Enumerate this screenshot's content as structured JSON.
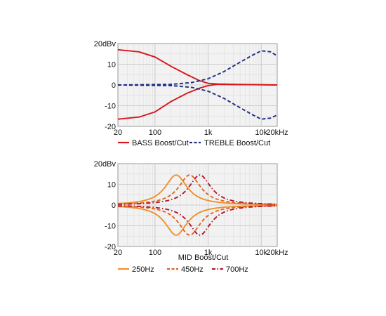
{
  "chart_data": [
    {
      "type": "line",
      "title": "",
      "xscale": "log",
      "xlim": [
        20,
        20000
      ],
      "ylim": [
        -20,
        20
      ],
      "y_unit_label": "20dBv",
      "y_ticks": [
        -20,
        -10,
        0,
        10,
        20
      ],
      "y_tick_labels": [
        "-20",
        "-10",
        "0",
        "10",
        "20dBv"
      ],
      "x_ticks": [
        20,
        100,
        1000,
        10000,
        20000
      ],
      "x_tick_labels": [
        "20",
        "100",
        "1k",
        "10k",
        "20kHz"
      ],
      "grid": true,
      "legend": "bottom",
      "series": [
        {
          "name": "BASS Boost/Cut",
          "color": "#d8151c",
          "dash": "solid",
          "points": [
            [
              20,
              17
            ],
            [
              50,
              16
            ],
            [
              100,
              13.5
            ],
            [
              200,
              9
            ],
            [
              400,
              5
            ],
            [
              700,
              2
            ],
            [
              1000,
              0.8
            ],
            [
              1500,
              0.5
            ],
            [
              3000,
              0.3
            ],
            [
              10000,
              0.1
            ],
            [
              20000,
              0
            ]
          ]
        },
        {
          "name": "",
          "color": "#d8151c",
          "dash": "solid",
          "points": [
            [
              20,
              -16.5
            ],
            [
              50,
              -15.5
            ],
            [
              100,
              -13
            ],
            [
              200,
              -8
            ],
            [
              400,
              -4
            ],
            [
              700,
              -1.5
            ],
            [
              1000,
              -0.3
            ],
            [
              1500,
              0.3
            ],
            [
              3000,
              0.2
            ],
            [
              10000,
              0.1
            ],
            [
              20000,
              0
            ]
          ]
        },
        {
          "name": "TREBLE Boost/Cut",
          "color": "#1f2a80",
          "dash": "dashed",
          "points": [
            [
              20,
              0
            ],
            [
              200,
              0.3
            ],
            [
              500,
              1.2
            ],
            [
              1000,
              3
            ],
            [
              2000,
              6.5
            ],
            [
              4000,
              11
            ],
            [
              7000,
              14.5
            ],
            [
              10000,
              16.5
            ],
            [
              15000,
              16
            ],
            [
              20000,
              14
            ]
          ]
        },
        {
          "name": "",
          "color": "#1f2a80",
          "dash": "dashed",
          "points": [
            [
              20,
              0
            ],
            [
              200,
              -0.3
            ],
            [
              500,
              -1.2
            ],
            [
              1000,
              -3
            ],
            [
              2000,
              -6.5
            ],
            [
              4000,
              -11
            ],
            [
              7000,
              -14.5
            ],
            [
              10000,
              -16.5
            ],
            [
              15000,
              -16
            ],
            [
              20000,
              -14.5
            ]
          ]
        }
      ]
    },
    {
      "type": "line",
      "title": "",
      "xscale": "log",
      "xlim": [
        20,
        20000
      ],
      "ylim": [
        -20,
        20
      ],
      "xlabel": "MID Boost/Cut",
      "y_ticks": [
        -20,
        -10,
        0,
        10,
        20
      ],
      "y_tick_labels": [
        "-20",
        "-10",
        "0",
        "10",
        "20dBv"
      ],
      "x_ticks": [
        20,
        100,
        1000,
        10000,
        20000
      ],
      "x_tick_labels": [
        "20",
        "100",
        "1k",
        "10k",
        "20kHz"
      ],
      "grid": true,
      "legend": "bottom",
      "series": [
        {
          "name": "250Hz",
          "color": "#f0902a",
          "dash": "solid",
          "center": 250,
          "peak": 14.5,
          "mirrored": true
        },
        {
          "name": "450Hz",
          "color": "#e0641e",
          "dash": "dashed",
          "center": 450,
          "peak": 14.5,
          "mirrored": true
        },
        {
          "name": "700Hz",
          "color": "#b3192a",
          "dash": "dashdot",
          "center": 700,
          "peak": 14.5,
          "mirrored": true
        }
      ]
    }
  ]
}
